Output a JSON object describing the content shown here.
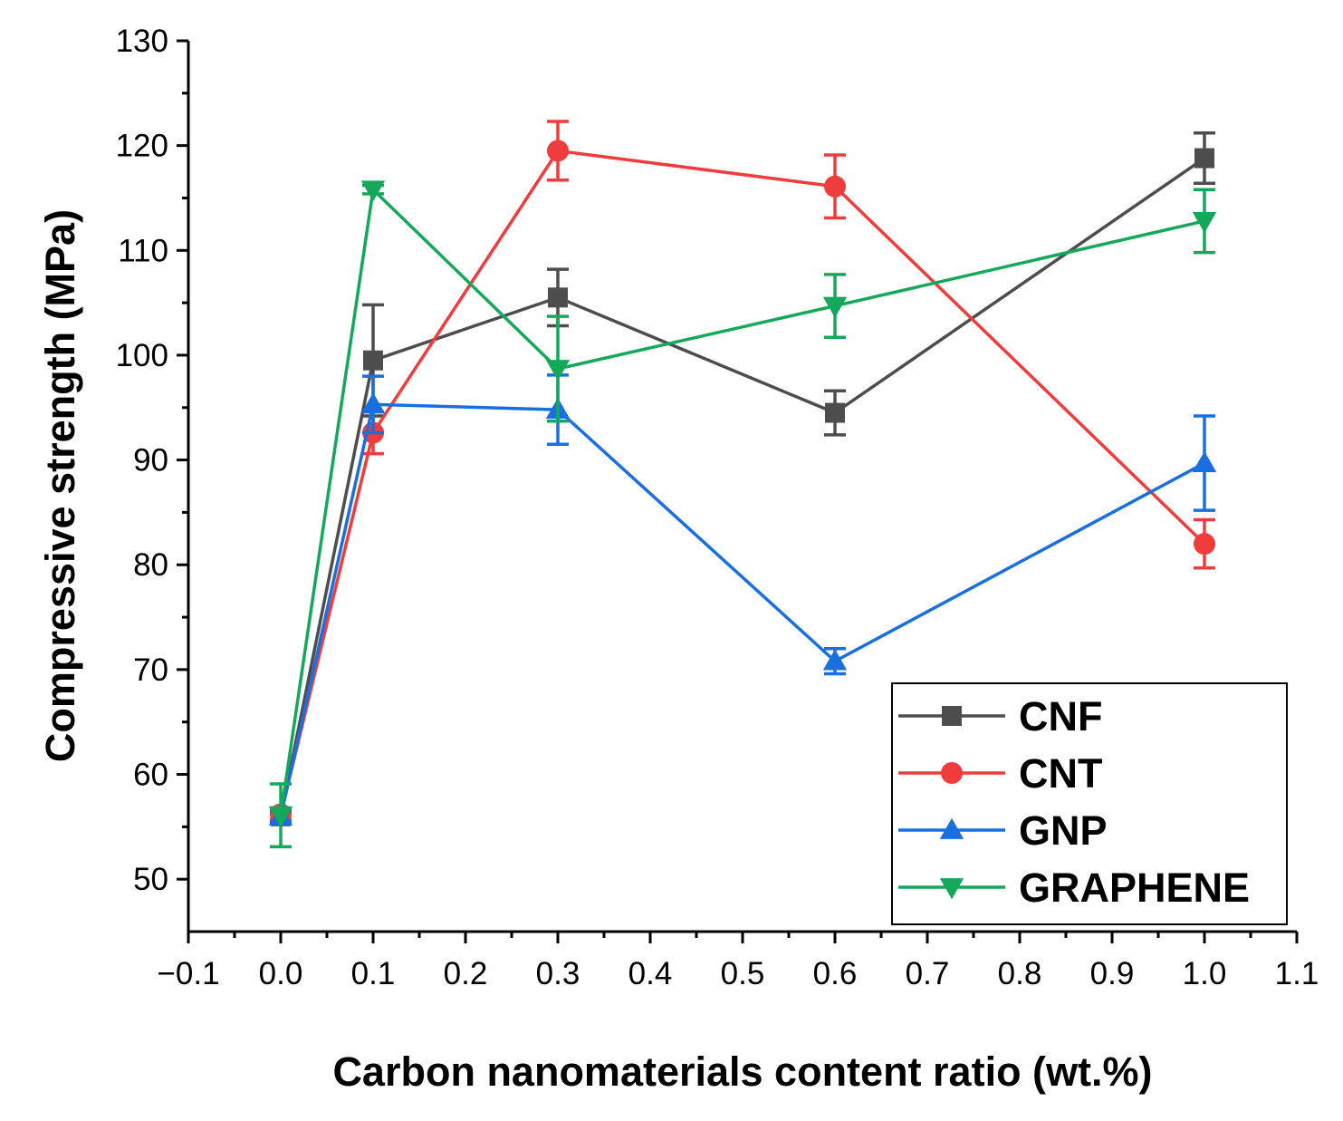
{
  "chart_data": {
    "type": "line",
    "title": "",
    "xlabel": "Carbon nanomaterials content ratio (wt.%)",
    "ylabel": "Compressive strength (MPa)",
    "xlim": [
      -0.1,
      1.1
    ],
    "ylim": [
      45,
      130
    ],
    "x_ticks": [
      -0.1,
      0.0,
      0.1,
      0.2,
      0.3,
      0.4,
      0.5,
      0.6,
      0.7,
      0.8,
      0.9,
      1.0,
      1.1
    ],
    "x_tick_labels": [
      "−0.1",
      "0.0",
      "0.1",
      "0.2",
      "0.3",
      "0.4",
      "0.5",
      "0.6",
      "0.7",
      "0.8",
      "0.9",
      "1.0",
      "1.1"
    ],
    "y_ticks": [
      50,
      60,
      70,
      80,
      90,
      100,
      110,
      120,
      130
    ],
    "y_tick_labels": [
      "50",
      "60",
      "70",
      "80",
      "90",
      "100",
      "110",
      "120",
      "130"
    ],
    "grid": false,
    "legend_position": "bottom-right",
    "x": [
      0.0,
      0.1,
      0.3,
      0.6,
      1.0
    ],
    "series": [
      {
        "name": "CNF",
        "color": "#4d4d4d",
        "marker": "square",
        "values": [
          56.0,
          99.5,
          105.5,
          94.5,
          118.8
        ],
        "errors": [
          0.6,
          5.3,
          2.7,
          2.1,
          2.4
        ]
      },
      {
        "name": "CNT",
        "color": "#f03c3c",
        "marker": "circle",
        "values": [
          56.2,
          92.6,
          119.5,
          116.1,
          82.0
        ],
        "errors": [
          0.5,
          2.0,
          2.8,
          3.0,
          2.3
        ]
      },
      {
        "name": "GNP",
        "color": "#1a6fe0",
        "marker": "triangle-up",
        "values": [
          56.0,
          95.3,
          94.8,
          70.8,
          89.7
        ],
        "errors": [
          0.5,
          2.7,
          3.3,
          1.2,
          4.5
        ]
      },
      {
        "name": "GRAPHENE",
        "color": "#14a85a",
        "marker": "triangle-down",
        "values": [
          56.1,
          115.8,
          98.7,
          104.7,
          112.8
        ],
        "errors": [
          3.0,
          0.4,
          5.0,
          3.0,
          3.0
        ]
      }
    ]
  }
}
